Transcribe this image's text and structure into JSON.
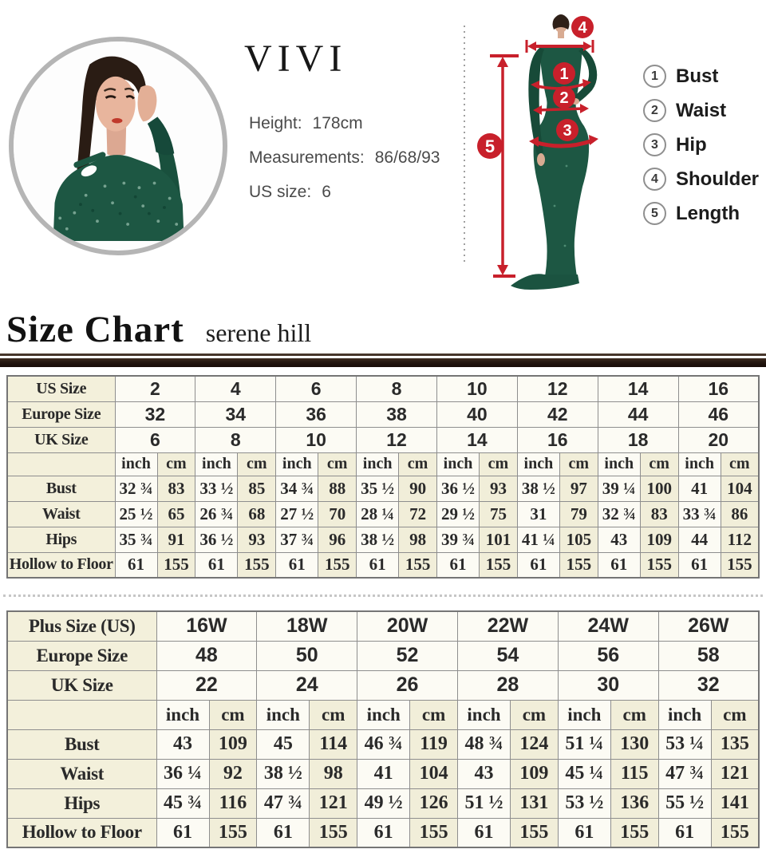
{
  "model_card": {
    "brand": "VIVI",
    "lines": [
      {
        "label": "Height:",
        "value": "178cm"
      },
      {
        "label": "Measurements:",
        "value": "86/68/93"
      },
      {
        "label": "US size:",
        "value": "6"
      }
    ]
  },
  "diagram": {
    "markers": [
      "1",
      "2",
      "3",
      "4",
      "5"
    ],
    "legend": [
      {
        "num": "1",
        "label": "Bust"
      },
      {
        "num": "2",
        "label": "Waist"
      },
      {
        "num": "3",
        "label": "Hip"
      },
      {
        "num": "4",
        "label": "Shoulder"
      },
      {
        "num": "5",
        "label": "Length"
      }
    ],
    "colors": {
      "marker_red": "#c8202b",
      "dress_green": "#1d5743"
    }
  },
  "heading": {
    "title": "Size Chart",
    "subtitle": "serene hill"
  },
  "tables": {
    "standard": {
      "size_rows": [
        {
          "label": "US Size",
          "values": [
            "2",
            "4",
            "6",
            "8",
            "10",
            "12",
            "14",
            "16"
          ]
        },
        {
          "label": "Europe Size",
          "values": [
            "32",
            "34",
            "36",
            "38",
            "40",
            "42",
            "44",
            "46"
          ]
        },
        {
          "label": "UK Size",
          "values": [
            "6",
            "8",
            "10",
            "12",
            "14",
            "16",
            "18",
            "20"
          ]
        }
      ],
      "unit_headers": [
        "inch",
        "cm"
      ],
      "measure_rows": [
        {
          "label": "Bust",
          "values": [
            [
              "32 ¾",
              "83"
            ],
            [
              "33 ½",
              "85"
            ],
            [
              "34 ¾",
              "88"
            ],
            [
              "35 ½",
              "90"
            ],
            [
              "36 ½",
              "93"
            ],
            [
              "38 ½",
              "97"
            ],
            [
              "39 ¼",
              "100"
            ],
            [
              "41",
              "104"
            ]
          ]
        },
        {
          "label": "Waist",
          "values": [
            [
              "25 ½",
              "65"
            ],
            [
              "26 ¾",
              "68"
            ],
            [
              "27 ½",
              "70"
            ],
            [
              "28 ¼",
              "72"
            ],
            [
              "29 ½",
              "75"
            ],
            [
              "31",
              "79"
            ],
            [
              "32 ¾",
              "83"
            ],
            [
              "33 ¾",
              "86"
            ]
          ]
        },
        {
          "label": "Hips",
          "values": [
            [
              "35 ¾",
              "91"
            ],
            [
              "36 ½",
              "93"
            ],
            [
              "37 ¾",
              "96"
            ],
            [
              "38 ½",
              "98"
            ],
            [
              "39 ¾",
              "101"
            ],
            [
              "41 ¼",
              "105"
            ],
            [
              "43",
              "109"
            ],
            [
              "44",
              "112"
            ]
          ]
        },
        {
          "label": "Hollow to Floor",
          "values": [
            [
              "61",
              "155"
            ],
            [
              "61",
              "155"
            ],
            [
              "61",
              "155"
            ],
            [
              "61",
              "155"
            ],
            [
              "61",
              "155"
            ],
            [
              "61",
              "155"
            ],
            [
              "61",
              "155"
            ],
            [
              "61",
              "155"
            ]
          ]
        }
      ]
    },
    "plus": {
      "size_rows": [
        {
          "label": "Plus Size (US)",
          "values": [
            "16W",
            "18W",
            "20W",
            "22W",
            "24W",
            "26W"
          ]
        },
        {
          "label": "Europe Size",
          "values": [
            "48",
            "50",
            "52",
            "54",
            "56",
            "58"
          ]
        },
        {
          "label": "UK Size",
          "values": [
            "22",
            "24",
            "26",
            "28",
            "30",
            "32"
          ]
        }
      ],
      "unit_headers": [
        "inch",
        "cm"
      ],
      "measure_rows": [
        {
          "label": "Bust",
          "values": [
            [
              "43",
              "109"
            ],
            [
              "45",
              "114"
            ],
            [
              "46 ¾",
              "119"
            ],
            [
              "48 ¾",
              "124"
            ],
            [
              "51 ¼",
              "130"
            ],
            [
              "53 ¼",
              "135"
            ]
          ]
        },
        {
          "label": "Waist",
          "values": [
            [
              "36 ¼",
              "92"
            ],
            [
              "38 ½",
              "98"
            ],
            [
              "41",
              "104"
            ],
            [
              "43",
              "109"
            ],
            [
              "45 ¼",
              "115"
            ],
            [
              "47 ¾",
              "121"
            ]
          ]
        },
        {
          "label": "Hips",
          "values": [
            [
              "45 ¾",
              "116"
            ],
            [
              "47 ¾",
              "121"
            ],
            [
              "49 ½",
              "126"
            ],
            [
              "51 ½",
              "131"
            ],
            [
              "53 ½",
              "136"
            ],
            [
              "55 ½",
              "141"
            ]
          ]
        },
        {
          "label": "Hollow to Floor",
          "values": [
            [
              "61",
              "155"
            ],
            [
              "61",
              "155"
            ],
            [
              "61",
              "155"
            ],
            [
              "61",
              "155"
            ],
            [
              "61",
              "155"
            ],
            [
              "61",
              "155"
            ]
          ]
        }
      ]
    }
  }
}
